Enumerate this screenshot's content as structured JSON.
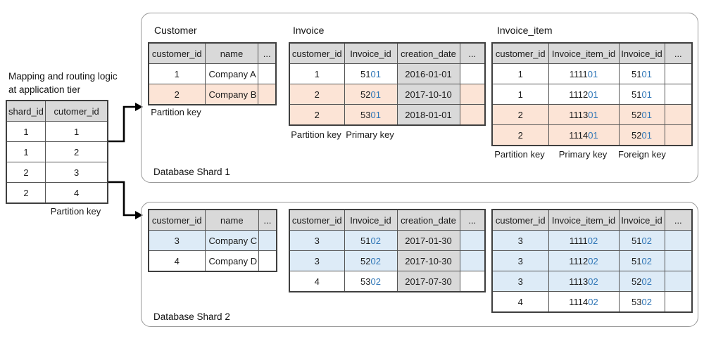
{
  "colors": {
    "header_bg": "#d9d9d9",
    "shard1_highlight": "#fce4d6",
    "shard2_highlight": "#ddebf7",
    "id_suffix_text": "#2e75b6",
    "date_cell_bg": "#d9d9d9"
  },
  "left": {
    "heading_line1": "Mapping and routing logic",
    "heading_line2": "at application tier",
    "mapping_table": {
      "headers": [
        "shard_id",
        "cutomer_id"
      ],
      "rows": [
        {
          "cells": [
            "1",
            "1"
          ]
        },
        {
          "cells": [
            "1",
            "2"
          ]
        },
        {
          "cells": [
            "2",
            "3"
          ]
        },
        {
          "cells": [
            "2",
            "4"
          ]
        }
      ]
    },
    "partition_key_label": "Partition key"
  },
  "shard1": {
    "label": "Database Shard 1",
    "customer": {
      "title": "Customer",
      "headers": [
        "customer_id",
        "name",
        "..."
      ],
      "rows": [
        {
          "cells": [
            "1",
            "Company A",
            ""
          ]
        },
        {
          "cells": [
            "2",
            "Company B",
            ""
          ],
          "hl": true
        }
      ],
      "footer": [
        "Partition key"
      ]
    },
    "invoice": {
      "title": "Invoice",
      "headers": [
        "customer_id",
        "Invoice_id",
        "creation_date",
        "..."
      ],
      "rows": [
        {
          "cells": [
            "1",
            [
              "51",
              "01"
            ],
            "2016-01-01",
            ""
          ]
        },
        {
          "cells": [
            "2",
            [
              "52",
              "01"
            ],
            "2017-10-10",
            ""
          ],
          "hl": true
        },
        {
          "cells": [
            "2",
            [
              "53",
              "01"
            ],
            "2018-01-01",
            ""
          ],
          "hl": true
        }
      ],
      "footer": [
        "Partition key",
        "Primary key"
      ]
    },
    "invoice_item": {
      "title": "Invoice_item",
      "headers": [
        "customer_id",
        "Invoice_item_id",
        "Invoice_id",
        "..."
      ],
      "rows": [
        {
          "cells": [
            "1",
            [
              "1111",
              "01"
            ],
            [
              "51",
              "01"
            ],
            ""
          ]
        },
        {
          "cells": [
            "1",
            [
              "1112",
              "01"
            ],
            [
              "51",
              "01"
            ],
            ""
          ]
        },
        {
          "cells": [
            "2",
            [
              "1113",
              "01"
            ],
            [
              "52",
              "01"
            ],
            ""
          ],
          "hl": true
        },
        {
          "cells": [
            "2",
            [
              "1114",
              "01"
            ],
            [
              "52",
              "01"
            ],
            ""
          ],
          "hl": true
        }
      ],
      "footer": [
        "Partition key",
        "Primary key",
        "Foreign key"
      ]
    }
  },
  "shard2": {
    "label": "Database Shard 2",
    "customer": {
      "headers": [
        "customer_id",
        "name",
        "..."
      ],
      "rows": [
        {
          "cells": [
            "3",
            "Company C",
            ""
          ],
          "hl": true
        },
        {
          "cells": [
            "4",
            "Company D",
            ""
          ]
        }
      ]
    },
    "invoice": {
      "headers": [
        "customer_id",
        "Invoice_id",
        "creation_date",
        "..."
      ],
      "rows": [
        {
          "cells": [
            "3",
            [
              "51",
              "02"
            ],
            "2017-01-30",
            ""
          ],
          "hl": true
        },
        {
          "cells": [
            "3",
            [
              "52",
              "02"
            ],
            "2017-10-30",
            ""
          ],
          "hl": true
        },
        {
          "cells": [
            "4",
            [
              "53",
              "02"
            ],
            "2017-07-30",
            ""
          ]
        }
      ]
    },
    "invoice_item": {
      "headers": [
        "customer_id",
        "Invoice_item_id",
        "Invoice_id",
        "..."
      ],
      "rows": [
        {
          "cells": [
            "3",
            [
              "1111",
              "02"
            ],
            [
              "51",
              "02"
            ],
            ""
          ],
          "hl": true
        },
        {
          "cells": [
            "3",
            [
              "1112",
              "02"
            ],
            [
              "51",
              "02"
            ],
            ""
          ],
          "hl": true
        },
        {
          "cells": [
            "3",
            [
              "1113",
              "02"
            ],
            [
              "52",
              "02"
            ],
            ""
          ],
          "hl": true
        },
        {
          "cells": [
            "4",
            [
              "1114",
              "02"
            ],
            [
              "53",
              "02"
            ],
            ""
          ]
        }
      ]
    }
  }
}
